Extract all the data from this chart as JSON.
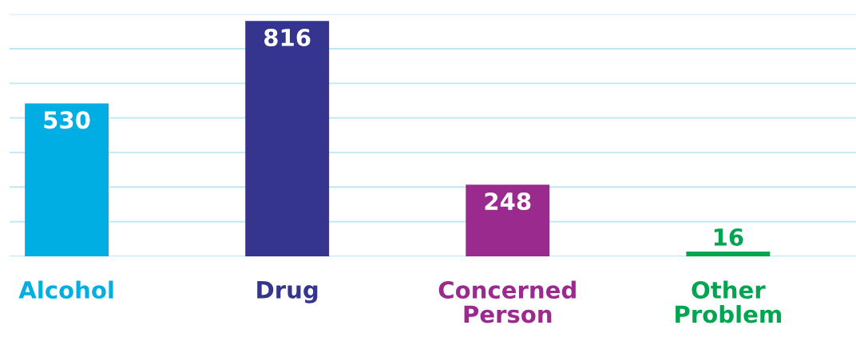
{
  "chart_data": {
    "type": "bar",
    "categories": [
      "Alcohol",
      "Drug",
      "Concerned Person",
      "Other Problem"
    ],
    "values": [
      530,
      816,
      248,
      16
    ],
    "colors": [
      "#00aee3",
      "#35358f",
      "#9b2a8e",
      "#00a550"
    ],
    "ylim": [
      0,
      840
    ],
    "yticks": [
      {
        "value": 0,
        "label": null
      },
      {
        "value": 120,
        "label": null
      },
      {
        "value": 240,
        "label": null
      },
      {
        "value": 360,
        "label": null
      },
      {
        "value": 480,
        "label": null
      },
      {
        "value": 600,
        "label": null
      },
      {
        "value": 720,
        "label": null
      },
      {
        "value": 840,
        "label": null
      }
    ],
    "tick_labels": "x",
    "grid": "y",
    "data_labels": true
  }
}
